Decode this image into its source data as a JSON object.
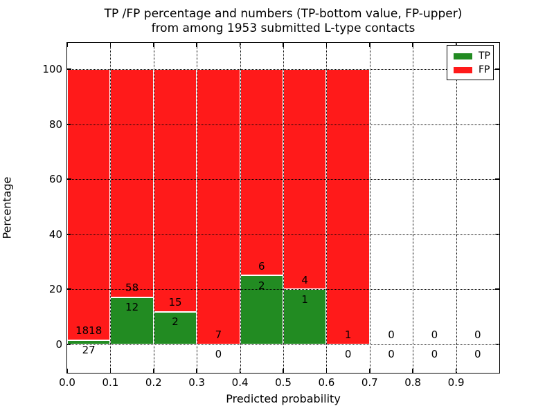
{
  "figure": {
    "title_line1": "TP /FP percentage and numbers (TP-bottom value, FP-upper)",
    "title_line2": "from among 1953 submitted L-type contacts"
  },
  "colors": {
    "tp_green": "#228b22",
    "fp_red": "#ff1a1a",
    "background": "#ffffff",
    "text": "#000000"
  },
  "chart_data": {
    "type": "bar",
    "stacked": true,
    "title": "TP /FP percentage and numbers (TP-bottom value, FP-upper) from among 1953 submitted L-type contacts",
    "xlabel": "Predicted probability",
    "ylabel": "Percentage",
    "xlim": [
      0.0,
      1.0
    ],
    "ylim": [
      -10.4,
      109.6
    ],
    "grid": "dotted",
    "legend_position": "upper right",
    "xticks": [
      "0.0",
      "0.1",
      "0.2",
      "0.3",
      "0.4",
      "0.5",
      "0.6",
      "0.7",
      "0.8",
      "0.9"
    ],
    "xtick_values": [
      0.0,
      0.1,
      0.2,
      0.3,
      0.4,
      0.5,
      0.6,
      0.7,
      0.8,
      0.9
    ],
    "yticks": [
      "0",
      "20",
      "40",
      "60",
      "80",
      "100"
    ],
    "ytick_values": [
      0,
      20,
      40,
      60,
      80,
      100
    ],
    "bin_width": 0.1,
    "total_contacts": 1953,
    "bins": [
      {
        "range": [
          0.0,
          0.1
        ],
        "tp": 27,
        "fp": 1818,
        "tp_pct": 1.46,
        "fp_pct": 98.54
      },
      {
        "range": [
          0.1,
          0.2
        ],
        "tp": 12,
        "fp": 58,
        "tp_pct": 17.14,
        "fp_pct": 82.86
      },
      {
        "range": [
          0.2,
          0.3
        ],
        "tp": 2,
        "fp": 15,
        "tp_pct": 11.76,
        "fp_pct": 88.24
      },
      {
        "range": [
          0.3,
          0.4
        ],
        "tp": 0,
        "fp": 7,
        "tp_pct": 0,
        "fp_pct": 100
      },
      {
        "range": [
          0.4,
          0.5
        ],
        "tp": 2,
        "fp": 6,
        "tp_pct": 25,
        "fp_pct": 75
      },
      {
        "range": [
          0.5,
          0.6
        ],
        "tp": 1,
        "fp": 4,
        "tp_pct": 20,
        "fp_pct": 80
      },
      {
        "range": [
          0.6,
          0.7
        ],
        "tp": 0,
        "fp": 1,
        "tp_pct": 0,
        "fp_pct": 100
      },
      {
        "range": [
          0.7,
          0.8
        ],
        "tp": 0,
        "fp": 0,
        "tp_pct": 0,
        "fp_pct": 0
      },
      {
        "range": [
          0.8,
          0.9
        ],
        "tp": 0,
        "fp": 0,
        "tp_pct": 0,
        "fp_pct": 0
      },
      {
        "range": [
          0.9,
          1.0
        ],
        "tp": 0,
        "fp": 0,
        "tp_pct": 0,
        "fp_pct": 0
      }
    ],
    "legend": {
      "entries": [
        {
          "label": "TP",
          "color": "#228b22"
        },
        {
          "label": "FP",
          "color": "#ff1a1a"
        }
      ]
    }
  }
}
